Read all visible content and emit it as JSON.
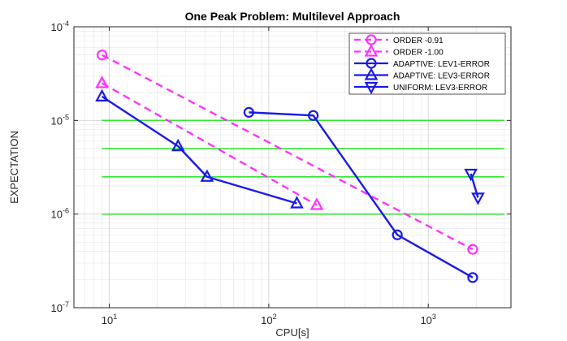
{
  "chart_data": {
    "type": "line",
    "title": "One Peak Problem: Multilevel Approach",
    "xlabel": "CPU[s]",
    "ylabel": "EXPECTATION",
    "xscale": "log",
    "yscale": "log",
    "xlim": [
      6,
      3300
    ],
    "ylim": [
      1e-07,
      0.0001
    ],
    "grid": true,
    "legend_position": "top-right",
    "x_ticks": [
      {
        "value": 10,
        "base": "10",
        "exp": "1"
      },
      {
        "value": 100,
        "base": "10",
        "exp": "2"
      },
      {
        "value": 1000,
        "base": "10",
        "exp": "3"
      }
    ],
    "y_ticks": [
      {
        "value": 1e-07,
        "base": "10",
        "exp": "-7"
      },
      {
        "value": 1e-06,
        "base": "10",
        "exp": "-6"
      },
      {
        "value": 1e-05,
        "base": "10",
        "exp": "-5"
      },
      {
        "value": 0.0001,
        "base": "10",
        "exp": "-4"
      }
    ],
    "reference_lines": {
      "color": "#33e633",
      "y": [
        1e-06,
        2.5e-06,
        5e-06,
        1e-05
      ]
    },
    "series": [
      {
        "name": "ORDER -0.91",
        "color": "#ff33ff",
        "line": "dashed",
        "marker": "circle",
        "x": [
          9,
          1900
        ],
        "y": [
          5e-05,
          4.2e-07
        ]
      },
      {
        "name": "ORDER -1.00",
        "color": "#ff33ff",
        "line": "dashed",
        "marker": "triangle-up",
        "x": [
          9,
          200
        ],
        "y": [
          2.5e-05,
          1.25e-06
        ]
      },
      {
        "name": "ADAPTIVE: LEV1-ERROR",
        "color": "#1a1ae6",
        "line": "solid",
        "marker": "circle",
        "x": [
          75,
          190,
          640,
          1900
        ],
        "y": [
          1.22e-05,
          1.13e-05,
          6e-07,
          2.1e-07
        ]
      },
      {
        "name": "ADAPTIVE: LEV3-ERROR",
        "color": "#1a1ae6",
        "line": "solid",
        "marker": "triangle-up",
        "x": [
          9,
          27,
          41,
          150
        ],
        "y": [
          1.8e-05,
          5.3e-06,
          2.5e-06,
          1.3e-06
        ]
      },
      {
        "name": "UNIFORM:  LEV3-ERROR",
        "color": "#1a1ae6",
        "line": "solid",
        "marker": "triangle-down",
        "x": [
          1850,
          2050
        ],
        "y": [
          2.7e-06,
          1.5e-06
        ]
      }
    ]
  }
}
